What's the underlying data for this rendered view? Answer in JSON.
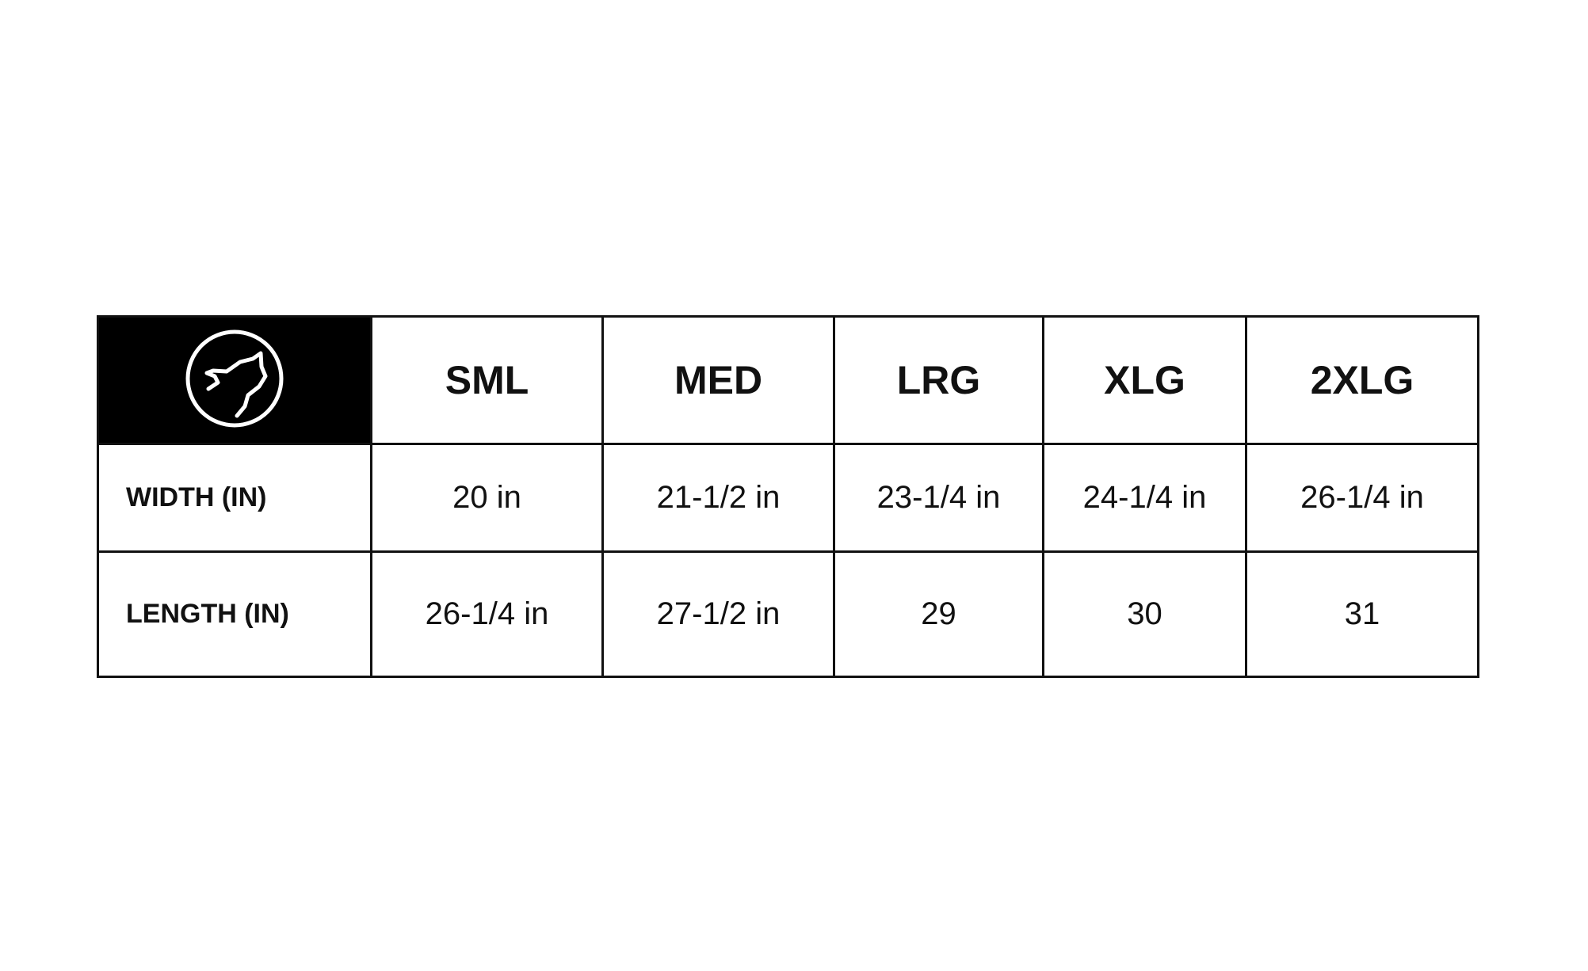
{
  "logo": {
    "icon": "howling-wolf-in-circle",
    "background": "#000000",
    "foreground": "#ffffff"
  },
  "columns": [
    "SML",
    "MED",
    "LRG",
    "XLG",
    "2XLG"
  ],
  "rows": [
    {
      "label": "WIDTH (IN)",
      "values": [
        "20 in",
        "21-1/2 in",
        "23-1/4 in",
        "24-1/4 in",
        "26-1/4 in"
      ]
    },
    {
      "label": "LENGTH (IN)",
      "values": [
        "26-1/4 in",
        "27-1/2 in",
        "29",
        "30",
        "31"
      ]
    }
  ]
}
